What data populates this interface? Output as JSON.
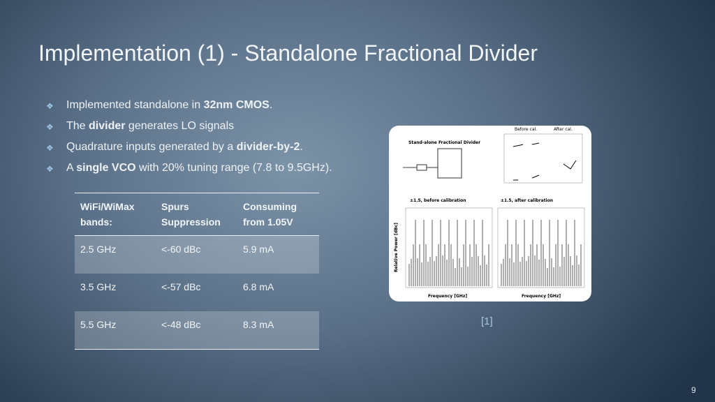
{
  "header": {
    "title": "Implementation (1) - Standalone Fractional Divider"
  },
  "bullets": [
    [
      {
        "text": "Implemented standalone in ",
        "bold": false
      },
      {
        "text": "32nm CMOS",
        "bold": true
      },
      {
        "text": ".",
        "bold": false
      }
    ],
    [
      {
        "text": "The ",
        "bold": false
      },
      {
        "text": "divider",
        "bold": true
      },
      {
        "text": " generates LO signals",
        "bold": false
      }
    ],
    [
      {
        "text": "Quadrature inputs generated by a ",
        "bold": false
      },
      {
        "text": "divider-by-2",
        "bold": true
      },
      {
        "text": ".",
        "bold": false
      }
    ],
    [
      {
        "text": "A ",
        "bold": false
      },
      {
        "text": "single VCO",
        "bold": true
      },
      {
        "text": " with 20% tuning range (7.8 to 9.5GHz).",
        "bold": false
      }
    ]
  ],
  "table": {
    "header": [
      "WiFi/WiMax bands:",
      "Spurs Suppression",
      "Consuming from 1.05V"
    ],
    "rows": [
      [
        "2.5 GHz",
        "<-60 dBc",
        "5.9 mA"
      ],
      [
        "3.5 GHz",
        "<-57 dBc",
        "6.8 mA"
      ],
      [
        "5.5 GHz",
        "<-48 dBc",
        "8.3 mA"
      ]
    ]
  },
  "figure": {
    "title": "Stand-alone Fractional Divider",
    "legend": [
      "Before cal.",
      "After cal."
    ],
    "left_plot": "±1.5, before calibration",
    "right_plot": "±1.5, after calibration",
    "x_label": "Frequency [GHz]",
    "y_label": "Relative Power [dBc]",
    "citation": "[1]"
  },
  "page_number": "9"
}
